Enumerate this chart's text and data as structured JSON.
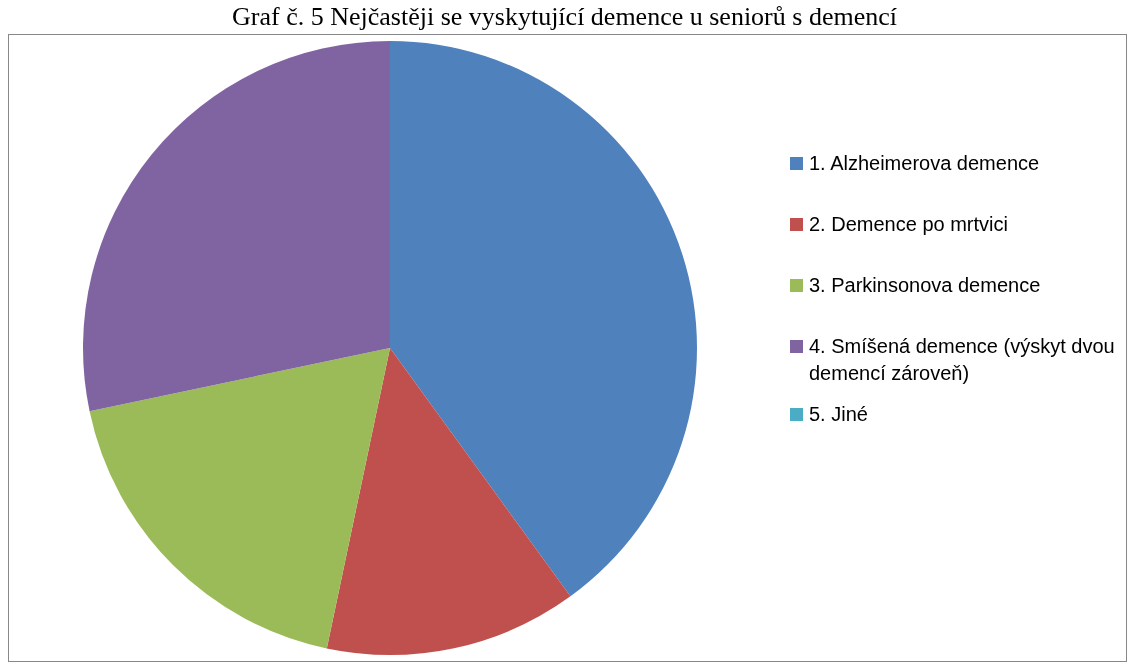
{
  "chart_data": {
    "type": "pie",
    "title": "Graf č. 5 Nejčastěji se vyskytující demence u seniorů s demencí",
    "categories": [
      "1. Alzheimerova demence",
      "2. Demence po mrtvici",
      "3. Parkinsonova demence",
      "4. Smíšená demence (výskyt dvou demencí zároveň)",
      "5. Jiné"
    ],
    "values": [
      40,
      13.3,
      18.4,
      28.3,
      0
    ],
    "colors": [
      "#4f81bd",
      "#c0504d",
      "#9bbb59",
      "#8064a2",
      "#4bacc6"
    ],
    "legend": "right"
  }
}
